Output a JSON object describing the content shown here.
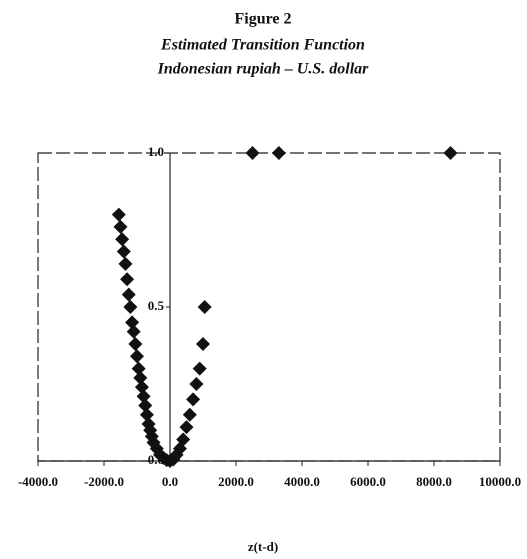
{
  "chart_data": {
    "type": "scatter",
    "title": "Figure 2",
    "subtitle": [
      "Estimated Transition Function",
      "Indonesian rupiah – U.S. dollar"
    ],
    "xlabel": "z(t-d)",
    "x": [
      -1550,
      -1500,
      -1450,
      -1400,
      -1350,
      -1300,
      -1250,
      -1200,
      -1150,
      -1100,
      -1050,
      -1000,
      -950,
      -900,
      -850,
      -800,
      -750,
      -700,
      -650,
      -600,
      -550,
      -500,
      -400,
      -300,
      -200,
      -100,
      0,
      100,
      200,
      300,
      400,
      500,
      600,
      700,
      800,
      900,
      1000,
      1050,
      2500,
      3300,
      8500
    ],
    "values": [
      0.8,
      0.76,
      0.72,
      0.68,
      0.64,
      0.59,
      0.54,
      0.5,
      0.45,
      0.42,
      0.38,
      0.34,
      0.3,
      0.27,
      0.24,
      0.21,
      0.18,
      0.15,
      0.12,
      0.1,
      0.08,
      0.06,
      0.04,
      0.02,
      0.01,
      0.003,
      0,
      0.005,
      0.02,
      0.04,
      0.07,
      0.11,
      0.15,
      0.2,
      0.25,
      0.3,
      0.38,
      0.5,
      1,
      1,
      1
    ],
    "color": "#111111",
    "xlim": [
      -4000,
      10000
    ],
    "ylim": [
      0,
      1
    ],
    "xticks": [
      {
        "value": -4000,
        "label": "-4000.0"
      },
      {
        "value": -2000,
        "label": "-2000.0"
      },
      {
        "value": 0,
        "label": "0.0"
      },
      {
        "value": 2000,
        "label": "2000.0"
      },
      {
        "value": 4000,
        "label": "4000.0"
      },
      {
        "value": 6000,
        "label": "6000.0"
      },
      {
        "value": 8000,
        "label": "8000.0"
      },
      {
        "value": 10000,
        "label": "10000.0"
      }
    ],
    "yticks": [
      {
        "value": 0,
        "label": "0.0"
      },
      {
        "value": 0.5,
        "label": "0.5"
      },
      {
        "value": 1,
        "label": "1.0"
      }
    ]
  }
}
